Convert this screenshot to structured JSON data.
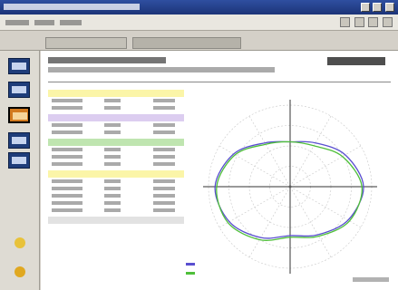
{
  "window": {
    "title": ""
  },
  "menu": {
    "items": [
      "",
      "",
      ""
    ]
  },
  "tabs": [
    {
      "label": ""
    }
  ],
  "sidebar": {
    "buttons": [
      {
        "icon": "document-icon",
        "color": "#1f3d7a"
      },
      {
        "icon": "chart-icon",
        "color": "#1f3d7a"
      },
      {
        "icon": "polar-chart-icon",
        "color": "#d27a1f",
        "selected": true
      },
      {
        "icon": "table-icon",
        "color": "#1f3d7a"
      },
      {
        "icon": "grid-icon",
        "color": "#1f3d7a"
      }
    ]
  },
  "header": {
    "title": "",
    "subtitle": ""
  },
  "colors": {
    "series_blue": "#5a4fd0",
    "series_green": "#4fbf3a",
    "band_yellow": "#fbf5a8",
    "band_purple": "#dccdf0",
    "band_green": "#bfe5b0"
  },
  "chart_data": {
    "type": "line",
    "polar": true,
    "angles_deg": [
      0,
      30,
      60,
      90,
      120,
      150,
      180,
      210,
      240,
      270,
      300,
      330
    ],
    "series": [
      {
        "values": [
          0.55,
          0.62,
          0.78,
          0.9,
          0.82,
          0.68,
          0.6,
          0.72,
          0.86,
          0.92,
          0.8,
          0.62
        ]
      },
      {
        "values": [
          0.55,
          0.58,
          0.74,
          0.88,
          0.84,
          0.7,
          0.62,
          0.75,
          0.88,
          0.9,
          0.78,
          0.6
        ]
      }
    ],
    "rlim": [
      0,
      1
    ],
    "grid": true
  }
}
